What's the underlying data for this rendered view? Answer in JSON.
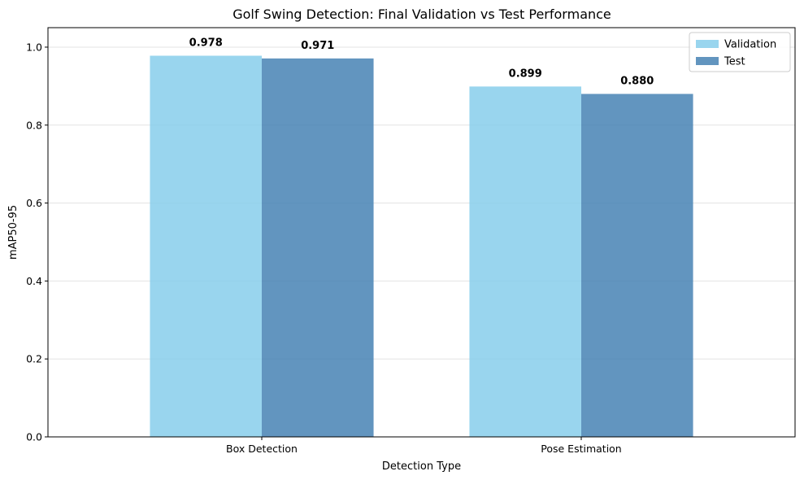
{
  "chart_data": {
    "type": "bar",
    "title": "Golf Swing Detection: Final Validation vs Test Performance",
    "xlabel": "Detection Type",
    "ylabel": "mAP50-95",
    "categories": [
      "Box Detection",
      "Pose Estimation"
    ],
    "series": [
      {
        "name": "Validation",
        "values": [
          0.978,
          0.899
        ],
        "labels": [
          "0.978",
          "0.899"
        ],
        "color": "#87ceeb"
      },
      {
        "name": "Test",
        "values": [
          0.971,
          0.88
        ],
        "labels": [
          "0.971",
          "0.880"
        ],
        "color": "#4682b4"
      }
    ],
    "ylim": [
      0,
      1.05
    ],
    "yticks": [
      0.0,
      0.2,
      0.4,
      0.6,
      0.8,
      1.0
    ],
    "ytick_labels": [
      "0.0",
      "0.2",
      "0.4",
      "0.6",
      "0.8",
      "1.0"
    ],
    "grid": "y",
    "legend": {
      "position": "top-right",
      "entries": [
        "Validation",
        "Test"
      ]
    }
  }
}
